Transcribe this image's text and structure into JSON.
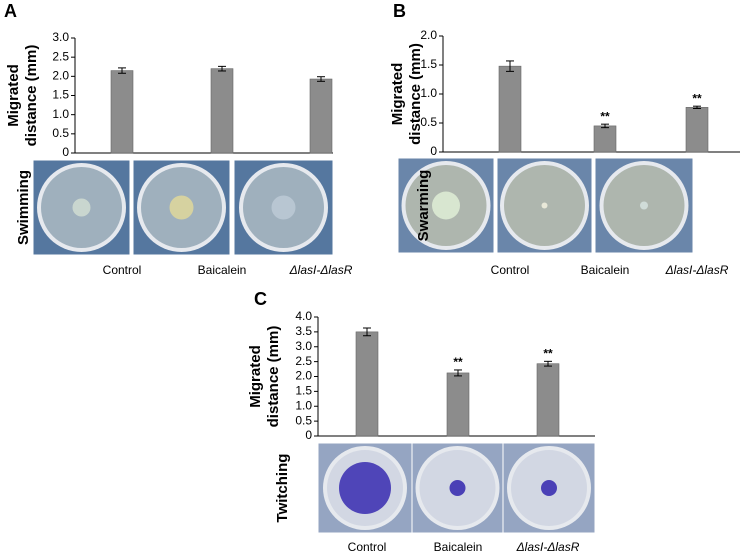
{
  "chart_data": [
    {
      "type": "bar",
      "panel": "A",
      "ylabel": [
        "Migrated",
        "distance (mm)"
      ],
      "image_label": "Swimming",
      "categories": [
        "Control",
        "Baicalein",
        "ΔlasI-ΔlasR"
      ],
      "values": [
        2.15,
        2.2,
        1.93
      ],
      "errors": [
        0.07,
        0.06,
        0.06
      ],
      "color": "#8c8c8c",
      "ylim": [
        0,
        3
      ],
      "yticks": [
        0,
        0.5,
        {
          "value": 1,
          "label": "1.0"
        },
        1.5,
        {
          "value": 2,
          "label": "2.0"
        },
        2.5,
        {
          "value": 3,
          "label": "3.0"
        }
      ]
    },
    {
      "type": "bar",
      "panel": "B",
      "ylabel": [
        "Migrated",
        "distance (mm)"
      ],
      "image_label": "Swarming",
      "categories": [
        "Control",
        "Baicalein",
        "ΔlasI-ΔlasR"
      ],
      "values": [
        1.48,
        0.45,
        0.77
      ],
      "errors": [
        0.09,
        0.03,
        0.02
      ],
      "annotations": [
        null,
        "**",
        "**"
      ],
      "color": "#8c8c8c",
      "ylim": [
        0,
        2
      ],
      "yticks": [
        0,
        0.5,
        {
          "value": 1,
          "label": "1.0"
        },
        1.5,
        {
          "value": 2,
          "label": "2.0"
        }
      ]
    },
    {
      "type": "bar",
      "panel": "C",
      "ylabel": [
        "Migrated",
        "distance (mm)"
      ],
      "image_label": "Twitching",
      "categories": [
        "Control",
        "Baicalein",
        "ΔlasI-ΔlasR"
      ],
      "values": [
        3.5,
        2.12,
        2.43
      ],
      "errors": [
        0.13,
        0.1,
        0.08
      ],
      "annotations": [
        null,
        "**",
        "**"
      ],
      "color": "#8c8c8c",
      "ylim": [
        0,
        4
      ],
      "yticks": [
        0,
        0.5,
        {
          "value": 1,
          "label": "1.0"
        },
        1.5,
        {
          "value": 2,
          "label": "2.0"
        },
        2.5,
        {
          "value": 3,
          "label": "3.0"
        },
        3.5,
        {
          "value": 4,
          "label": "4.0"
        }
      ]
    }
  ]
}
